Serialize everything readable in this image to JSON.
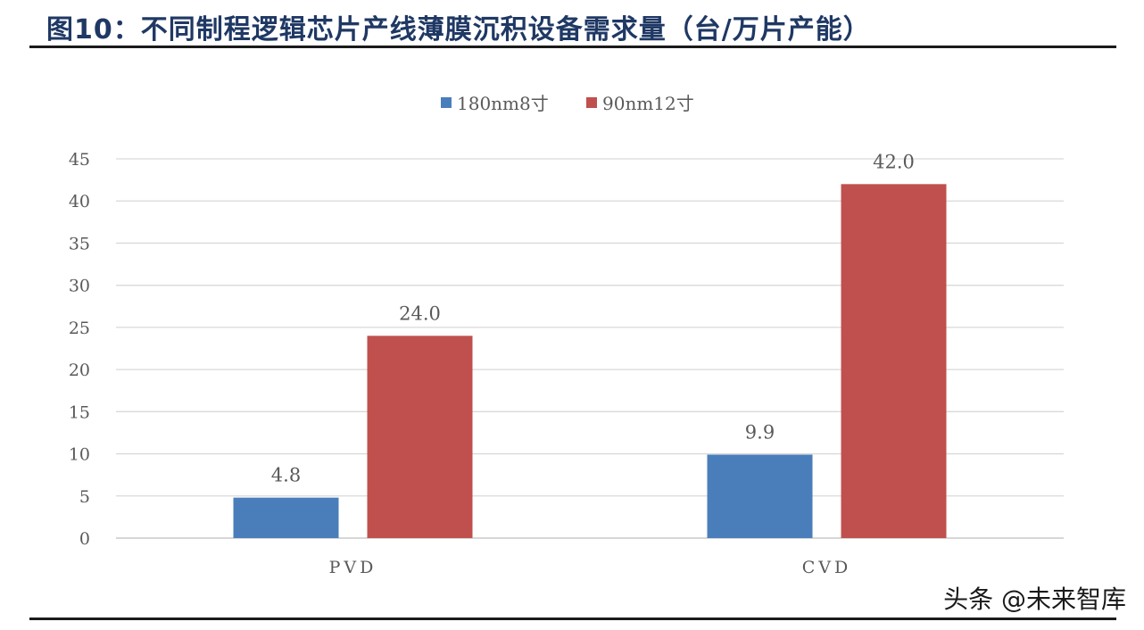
{
  "figure": {
    "title": "图10：不同制程逻辑芯片产线薄膜沉积设备需求量（台/万片产能）",
    "watermark": "头条 @未来智库"
  },
  "chart_data": {
    "type": "bar",
    "title": "",
    "xlabel": "",
    "ylabel": "",
    "categories": [
      "PVD",
      "CVD"
    ],
    "series": [
      {
        "name": "180nm8寸",
        "values": [
          4.8,
          9.9
        ],
        "color": "#4a7ebb"
      },
      {
        "name": "90nm12寸",
        "values": [
          24.0,
          42.0
        ],
        "color": "#c0504d"
      }
    ],
    "data_labels": [
      [
        "4.8",
        "9.9"
      ],
      [
        "24.0",
        "42.0"
      ]
    ],
    "ylim": [
      0,
      45
    ],
    "yticks": [
      0,
      5,
      10,
      15,
      20,
      25,
      30,
      35,
      40,
      45
    ],
    "grid": true,
    "legend_position": "top-center"
  }
}
